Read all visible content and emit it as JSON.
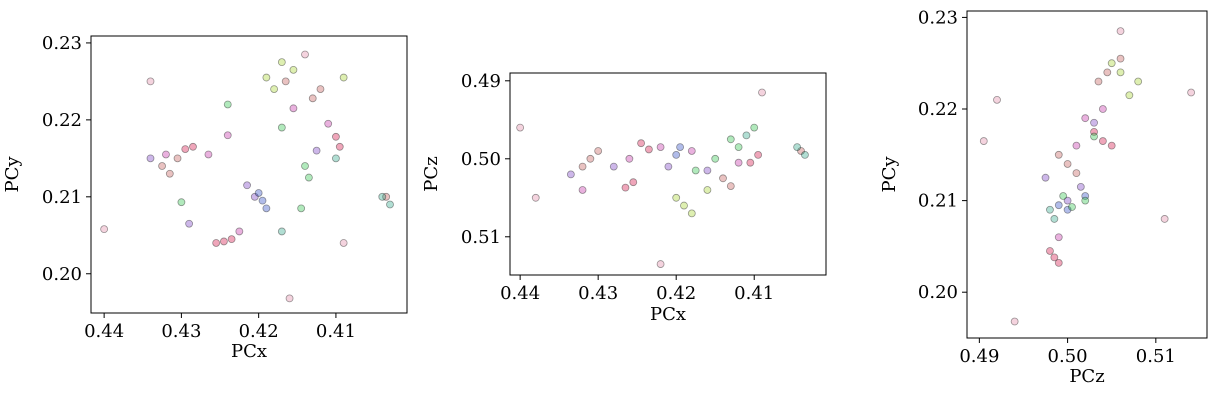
{
  "chart_data": [
    {
      "type": "scatter",
      "xlabel": "PCx",
      "ylabel": "PCy",
      "xlim": [
        0.4417,
        0.4008
      ],
      "ylim": [
        0.1949,
        0.2309
      ],
      "xticks": [
        0.44,
        0.43,
        0.42,
        0.41
      ],
      "yticks": [
        {
          "value": 0.2,
          "label": "0.20"
        },
        0.21,
        0.22,
        0.23
      ],
      "series": [
        {
          "color": "#d0003a",
          "x": [
            0.4245,
            0.4255,
            0.4235,
            0.4295,
            0.4285,
            0.4095,
            0.41
          ],
          "y": [
            0.2042,
            0.204,
            0.2045,
            0.2162,
            0.2165,
            0.2165,
            0.2178
          ]
        },
        {
          "color": "#c0504d",
          "x": [
            0.4315,
            0.4325,
            0.4305,
            0.413,
            0.412,
            0.4165,
            0.4035
          ],
          "y": [
            0.213,
            0.214,
            0.215,
            0.2228,
            0.224,
            0.225,
            0.21
          ]
        },
        {
          "color": "#c020a0",
          "x": [
            0.432,
            0.4265,
            0.424,
            0.4155,
            0.411,
            0.4225
          ],
          "y": [
            0.2155,
            0.2155,
            0.218,
            0.2215,
            0.2195,
            0.2055
          ]
        },
        {
          "color": "#7030c0",
          "x": [
            0.434,
            0.4215,
            0.4205,
            0.4125,
            0.429
          ],
          "y": [
            0.215,
            0.2115,
            0.21,
            0.216,
            0.2065
          ]
        },
        {
          "color": "#2040c0",
          "x": [
            0.4195,
            0.419,
            0.42
          ],
          "y": [
            0.2095,
            0.2085,
            0.2105
          ]
        },
        {
          "color": "#20c040",
          "x": [
            0.43,
            0.417,
            0.414,
            0.4135,
            0.4145,
            0.424
          ],
          "y": [
            0.2093,
            0.219,
            0.214,
            0.2125,
            0.2085,
            0.222
          ]
        },
        {
          "color": "#a0d020",
          "x": [
            0.418,
            0.419,
            0.4155,
            0.417,
            0.409
          ],
          "y": [
            0.224,
            0.2255,
            0.2265,
            0.2275,
            0.2255
          ]
        },
        {
          "color": "#20a080",
          "x": [
            0.403,
            0.404,
            0.417,
            0.41
          ],
          "y": [
            0.209,
            0.21,
            0.2055,
            0.215
          ]
        },
        {
          "color": "#e080a0",
          "x": [
            0.44,
            0.414,
            0.409,
            0.434,
            0.416
          ],
          "y": [
            0.2058,
            0.2285,
            0.204,
            0.225,
            0.1968
          ]
        }
      ]
    },
    {
      "type": "scatter",
      "xlabel": "PCx",
      "ylabel": "PCz",
      "xlim": [
        0.4413,
        0.4008
      ],
      "ylim": [
        0.5149,
        0.489
      ],
      "xticks": [
        0.44,
        0.43,
        0.42,
        0.41
      ],
      "yticks": [
        0.49,
        {
          "value": 0.5,
          "label": "0.50"
        },
        0.51
      ],
      "series": [
        {
          "color": "#d0003a",
          "x": [
            0.4265,
            0.4255,
            0.4245,
            0.4235,
            0.4095,
            0.4105
          ],
          "y": [
            0.5037,
            0.503,
            0.498,
            0.4988,
            0.4995,
            0.5005
          ]
        },
        {
          "color": "#c0504d",
          "x": [
            0.431,
            0.43,
            0.432,
            0.413,
            0.414,
            0.404
          ],
          "y": [
            0.5,
            0.499,
            0.501,
            0.5035,
            0.5025,
            0.499
          ]
        },
        {
          "color": "#c020a0",
          "x": [
            0.426,
            0.422,
            0.418,
            0.412,
            0.432
          ],
          "y": [
            0.5,
            0.4985,
            0.499,
            0.5005,
            0.504
          ]
        },
        {
          "color": "#7030c0",
          "x": [
            0.4335,
            0.421,
            0.416,
            0.428
          ],
          "y": [
            0.502,
            0.501,
            0.5015,
            0.501
          ]
        },
        {
          "color": "#2040c0",
          "x": [
            0.4195,
            0.42
          ],
          "y": [
            0.4985,
            0.4995
          ]
        },
        {
          "color": "#20c040",
          "x": [
            0.413,
            0.412,
            0.4175,
            0.41,
            0.415
          ],
          "y": [
            0.4975,
            0.4985,
            0.5015,
            0.496,
            0.5
          ]
        },
        {
          "color": "#a0d020",
          "x": [
            0.419,
            0.418,
            0.42,
            0.416
          ],
          "y": [
            0.506,
            0.507,
            0.505,
            0.504
          ]
        },
        {
          "color": "#20a080",
          "x": [
            0.4035,
            0.4045,
            0.411
          ],
          "y": [
            0.4995,
            0.4985,
            0.497
          ]
        },
        {
          "color": "#e080a0",
          "x": [
            0.44,
            0.422,
            0.409,
            0.438
          ],
          "y": [
            0.496,
            0.5135,
            0.4915,
            0.505
          ]
        }
      ]
    },
    {
      "type": "scatter",
      "xlabel": "PCz",
      "ylabel": "PCy",
      "xlim": [
        0.4886,
        0.5158
      ],
      "ylim": [
        0.195,
        0.2307
      ],
      "xticks": [
        0.49,
        {
          "value": 0.5,
          "label": "0.50"
        },
        0.51
      ],
      "yticks": [
        {
          "value": 0.2,
          "label": "0.20"
        },
        0.21,
        0.22,
        0.23
      ],
      "series": [
        {
          "color": "#d0003a",
          "x": [
            0.4985,
            0.498,
            0.499,
            0.504,
            0.505,
            0.503
          ],
          "y": [
            0.2038,
            0.2045,
            0.2032,
            0.2165,
            0.216,
            0.2175
          ]
        },
        {
          "color": "#c0504d",
          "x": [
            0.5,
            0.501,
            0.499,
            0.5035,
            0.5045,
            0.506
          ],
          "y": [
            0.214,
            0.213,
            0.215,
            0.223,
            0.224,
            0.2255
          ]
        },
        {
          "color": "#c020a0",
          "x": [
            0.501,
            0.499,
            0.502,
            0.504
          ],
          "y": [
            0.216,
            0.206,
            0.219,
            0.22
          ]
        },
        {
          "color": "#7030c0",
          "x": [
            0.5015,
            0.5,
            0.503,
            0.4975
          ],
          "y": [
            0.2115,
            0.21,
            0.2185,
            0.2125
          ]
        },
        {
          "color": "#2040c0",
          "x": [
            0.499,
            0.5,
            0.502
          ],
          "y": [
            0.2095,
            0.209,
            0.2105
          ]
        },
        {
          "color": "#20c040",
          "x": [
            0.5005,
            0.502,
            0.4995,
            0.503
          ],
          "y": [
            0.2093,
            0.21,
            0.2105,
            0.217
          ]
        },
        {
          "color": "#a0d020",
          "x": [
            0.505,
            0.506,
            0.508,
            0.507
          ],
          "y": [
            0.225,
            0.224,
            0.223,
            0.2215
          ]
        },
        {
          "color": "#20a080",
          "x": [
            0.498,
            0.4985
          ],
          "y": [
            0.209,
            0.208
          ]
        },
        {
          "color": "#e080a0",
          "x": [
            0.494,
            0.492,
            0.4905,
            0.511,
            0.506,
            0.514
          ],
          "y": [
            0.1968,
            0.221,
            0.2165,
            0.208,
            0.2285,
            0.2218
          ]
        }
      ]
    }
  ]
}
